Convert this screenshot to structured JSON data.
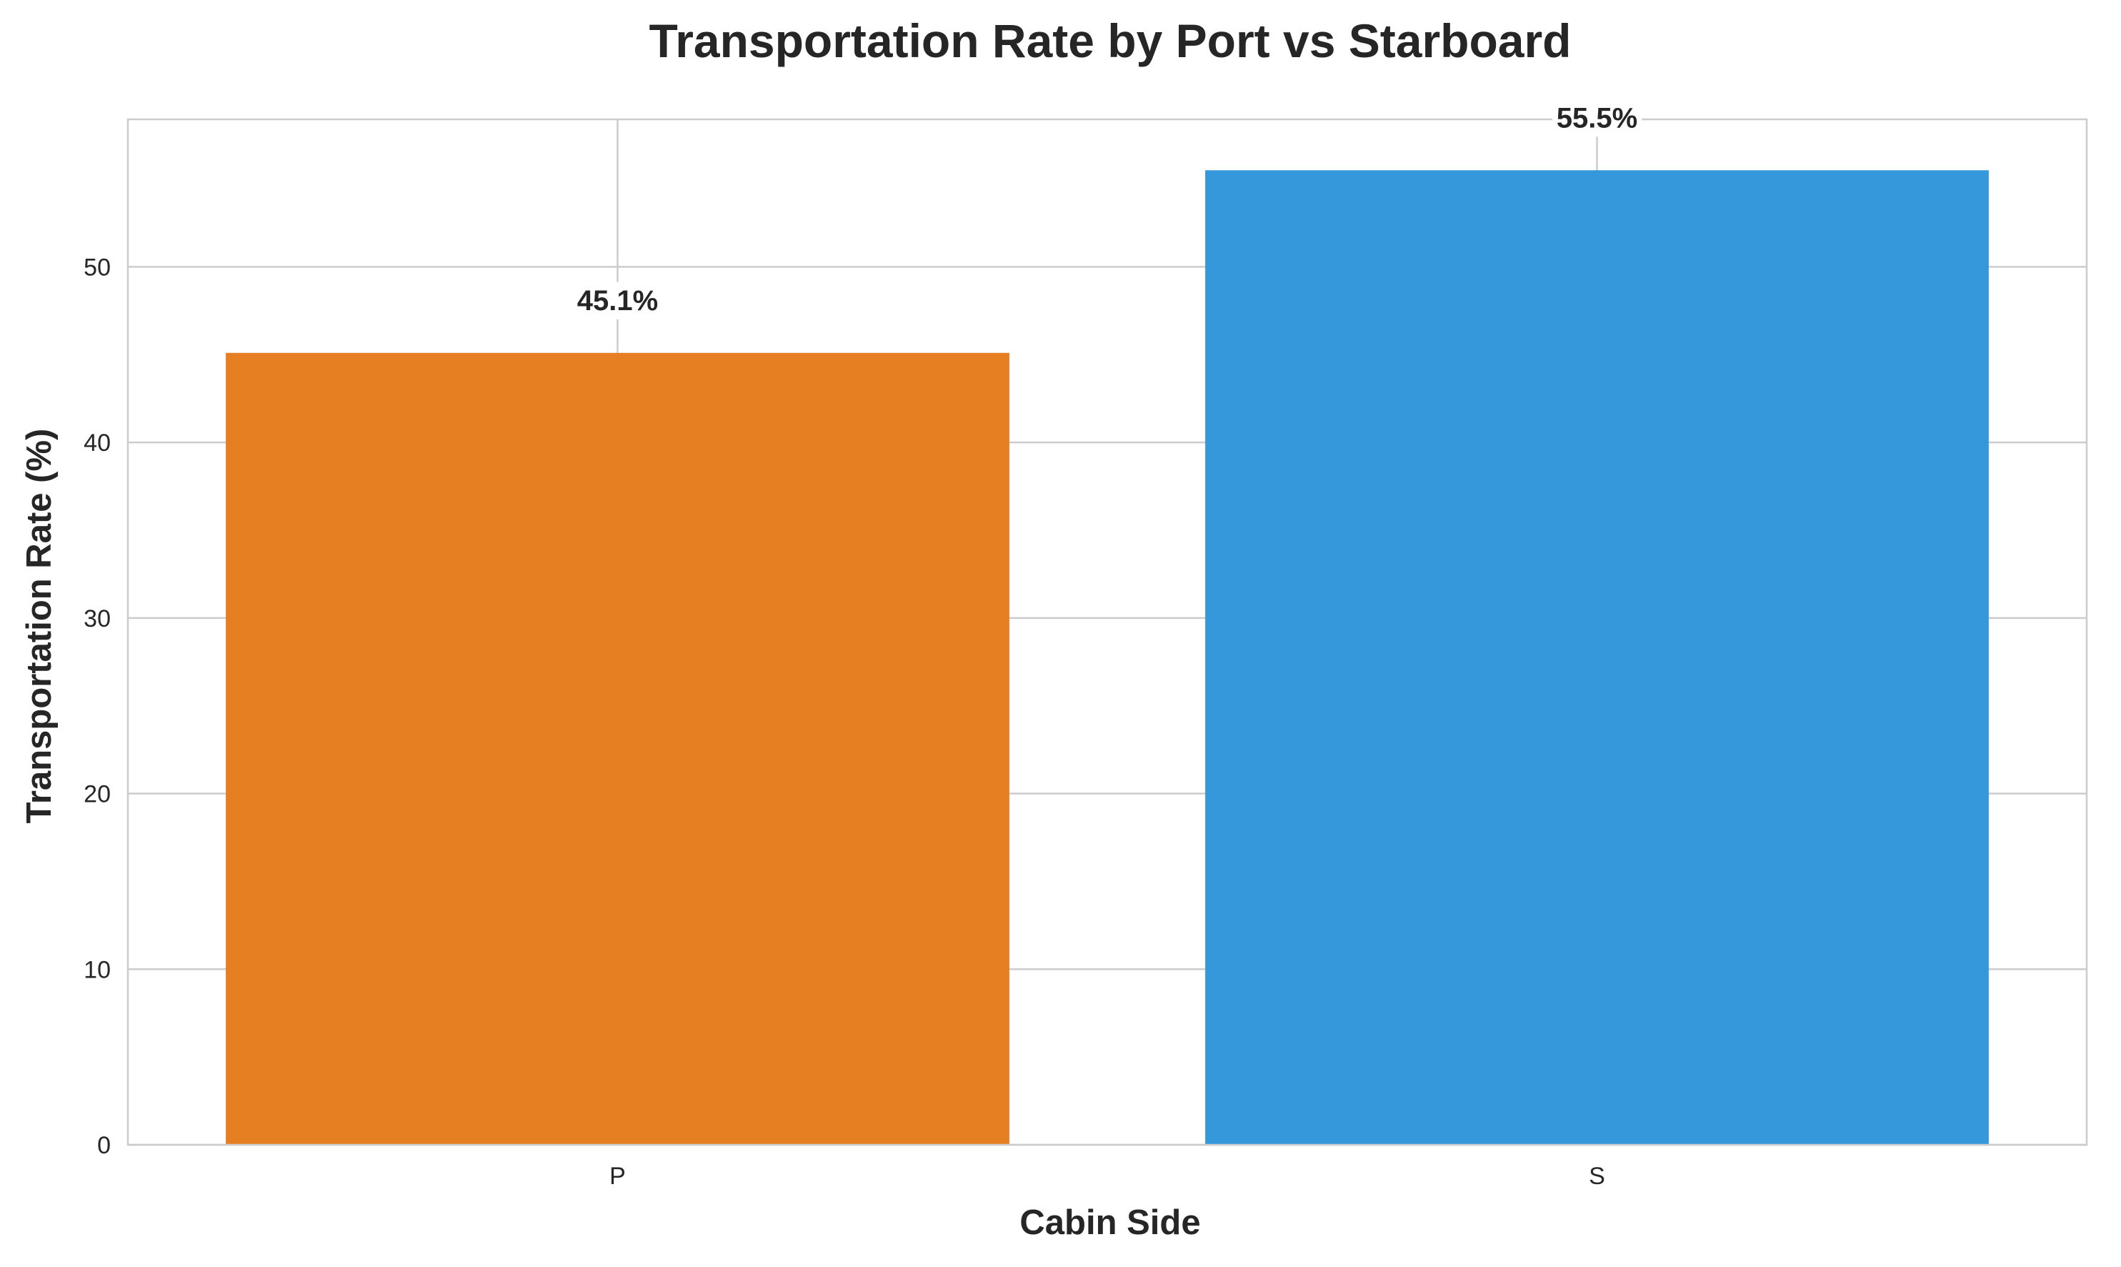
{
  "chart_data": {
    "type": "bar",
    "title": "Transportation Rate by Port vs Starboard",
    "xlabel": "Cabin Side",
    "ylabel": "Transportation Rate (%)",
    "categories": [
      "P",
      "S"
    ],
    "values": [
      45.1,
      55.5
    ],
    "data_labels": [
      "45.1%",
      "55.5%"
    ],
    "colors": [
      "#e67e22",
      "#3498db"
    ],
    "ylim": [
      0,
      58.4
    ],
    "yticks": [
      0,
      10,
      20,
      30,
      40,
      50
    ],
    "ytick_labels": [
      "0",
      "10",
      "20",
      "30",
      "40",
      "50"
    ],
    "grid": true,
    "grid_color": "#cccccc"
  }
}
